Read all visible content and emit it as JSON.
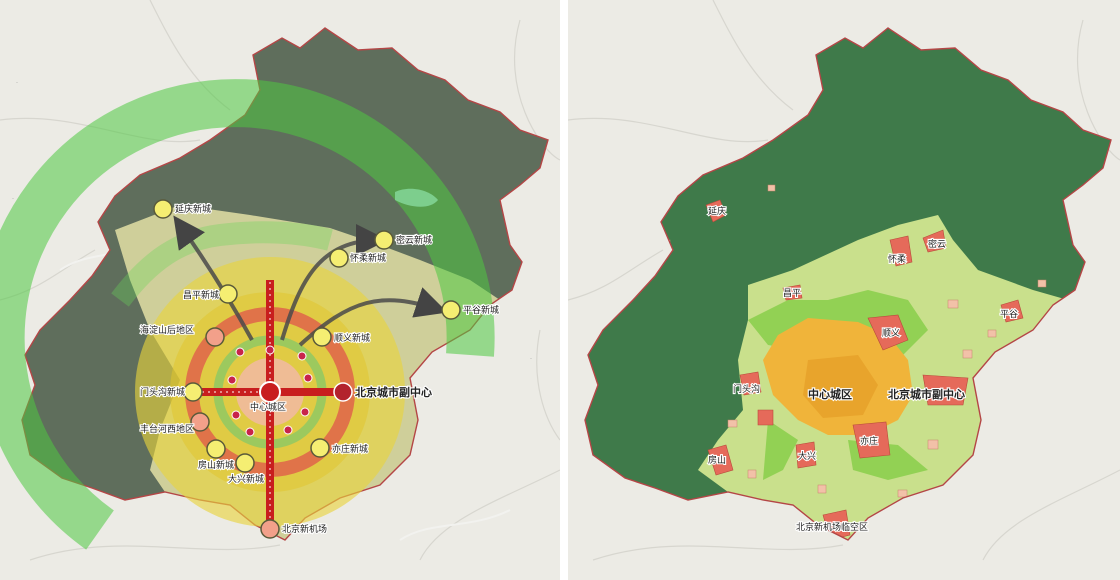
{
  "left_map": {
    "labels": {
      "yanqing": "延庆新城",
      "miyun": "密云新城",
      "huairou": "怀柔新城",
      "changping": "昌平新城",
      "pinggu": "平谷新城",
      "haidian_north": "海淀山后地区",
      "shunyi": "顺义新城",
      "mentougou": "门头沟新城",
      "core": "中心城区",
      "sub_center": "北京城市副中心",
      "fengtai_south": "丰台河西地区",
      "fangshan": "房山新城",
      "yizhuang": "亦庄新城",
      "daxing": "大兴新城",
      "airport": "北京新机场"
    }
  },
  "right_map": {
    "labels": {
      "yanqing": "延庆",
      "huairou": "怀柔",
      "miyun": "密云",
      "changping": "昌平",
      "pinggu": "平谷",
      "shunyi": "顺义",
      "mentougou": "门头沟",
      "core": "中心城区",
      "sub_center": "北京城市副中心",
      "fangshan": "房山",
      "daxing": "大兴",
      "yizhuang": "亦庄",
      "airport": "北京新机场临空区"
    }
  },
  "colors": {
    "basemap": "#ecebe5",
    "mountain_left": "#5f6e5c",
    "mountain_right": "#3f7a4a",
    "ecology_green": "#3db83a",
    "plain_yellow": "#e6d94a",
    "red_ring": "#d9544a",
    "axis_red": "#c81e1e",
    "plain_light": "#c7e08a",
    "urban_orange": "#f0b43a",
    "town_red": "#e56a5a"
  }
}
